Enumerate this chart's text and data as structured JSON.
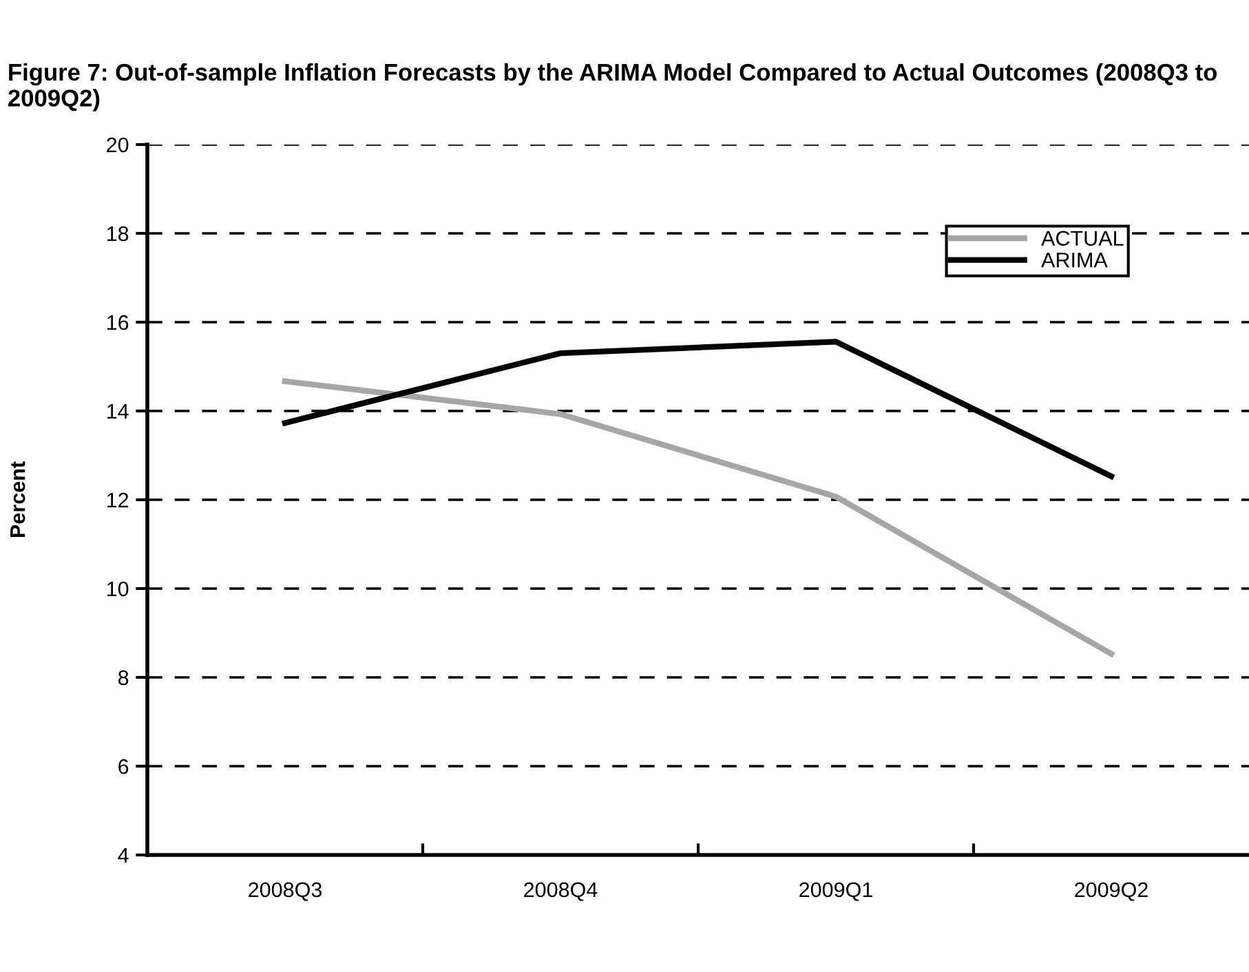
{
  "chart_data": {
    "type": "line",
    "title": "Figure 7: Out-of-sample Inflation Forecasts by the ARIMA Model Compared to Actual Outcomes (2008Q3 to 2009Q2)",
    "ylabel": "Percent",
    "categories": [
      "2008Q3",
      "2008Q4",
      "2009Q1",
      "2009Q2"
    ],
    "series": [
      {
        "name": "ACTUAL",
        "color": "#a6a6a6",
        "values": [
          14.67,
          13.93,
          12.07,
          8.53
        ]
      },
      {
        "name": "ARIMA",
        "color": "#000000",
        "values": [
          13.73,
          15.3,
          15.56,
          12.53
        ]
      }
    ],
    "ylim": [
      4,
      20
    ],
    "yticks": [
      4,
      6,
      8,
      10,
      12,
      14,
      16,
      18,
      20
    ],
    "grid": "y",
    "legend": "top right",
    "marker": "none",
    "line_style": "solid"
  }
}
